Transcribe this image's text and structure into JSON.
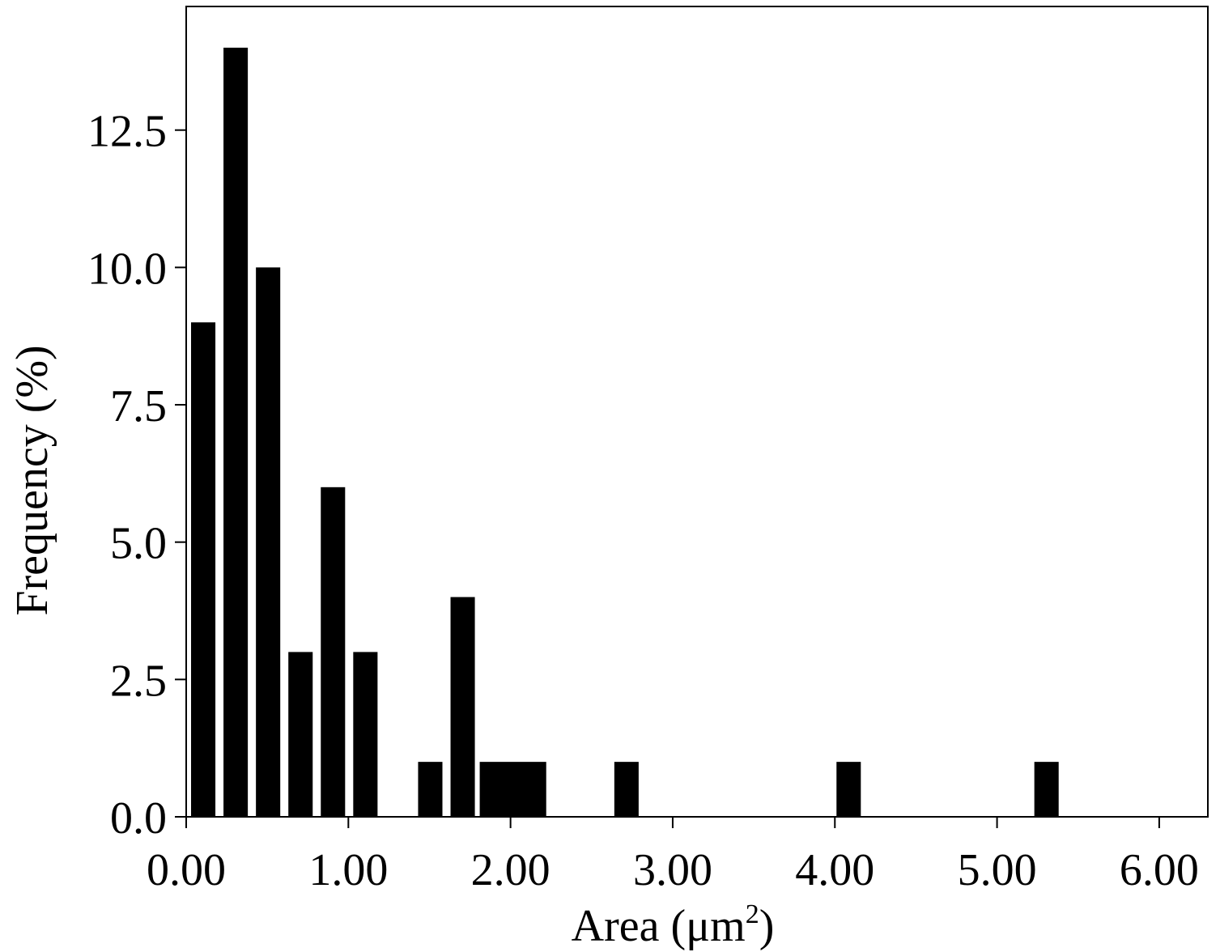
{
  "chart_data": {
    "type": "bar",
    "title": "",
    "xlabel_main": "Area (μm",
    "xlabel_sup": "2",
    "xlabel_close": ")",
    "ylabel": "Frequency (%)",
    "xlim": [
      0,
      6.3
    ],
    "ylim": [
      0,
      14.75
    ],
    "x_ticks": [
      0,
      1,
      2,
      3,
      4,
      5,
      6
    ],
    "x_tick_labels": [
      "0.00",
      "1.00",
      "2.00",
      "3.00",
      "4.00",
      "5.00",
      "6.00"
    ],
    "y_ticks": [
      0,
      2.5,
      5,
      7.5,
      10,
      12.5
    ],
    "y_tick_labels": [
      "0.0",
      "2.5",
      "5.0",
      "7.5",
      "10.0",
      "12.5"
    ],
    "bars": [
      {
        "x0": 0.03,
        "x1": 0.18,
        "value": 9
      },
      {
        "x0": 0.23,
        "x1": 0.38,
        "value": 14
      },
      {
        "x0": 0.43,
        "x1": 0.58,
        "value": 10
      },
      {
        "x0": 0.63,
        "x1": 0.78,
        "value": 3
      },
      {
        "x0": 0.83,
        "x1": 0.98,
        "value": 6
      },
      {
        "x0": 1.03,
        "x1": 1.18,
        "value": 3
      },
      {
        "x0": 1.43,
        "x1": 1.58,
        "value": 1
      },
      {
        "x0": 1.63,
        "x1": 1.78,
        "value": 4
      },
      {
        "x0": 1.81,
        "x1": 2.22,
        "value": 1
      },
      {
        "x0": 2.64,
        "x1": 2.79,
        "value": 1
      },
      {
        "x0": 4.01,
        "x1": 4.16,
        "value": 1
      },
      {
        "x0": 5.23,
        "x1": 5.38,
        "value": 1
      }
    ],
    "bar_color": "#000000",
    "grid": false,
    "legend": "none"
  }
}
